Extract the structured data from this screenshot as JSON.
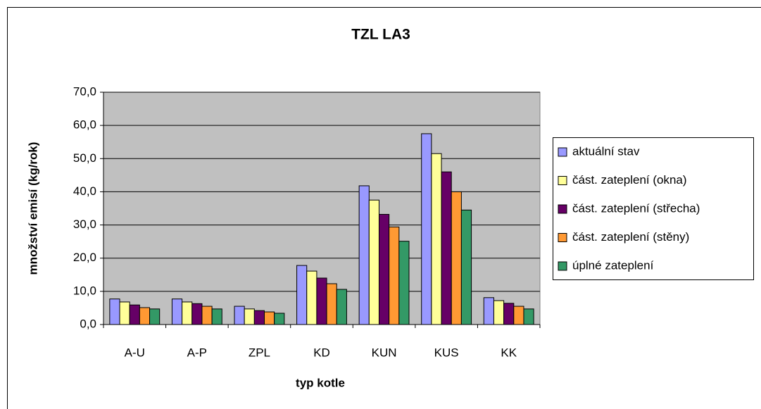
{
  "chart_data": {
    "type": "bar",
    "title": "TZL LA3",
    "xlabel": "typ kotle",
    "ylabel": "množství emisí (kg/rok)",
    "categories": [
      "A-U",
      "A-P",
      "ZPL",
      "KD",
      "KUN",
      "KUS",
      "KK"
    ],
    "series": [
      {
        "name": "aktuální stav",
        "color": "#9999ff",
        "values": [
          7.7,
          7.7,
          5.5,
          17.8,
          41.8,
          57.5,
          8.1
        ]
      },
      {
        "name": "část. zateplení (okna)",
        "color": "#ffff99",
        "values": [
          6.8,
          6.8,
          4.7,
          16.1,
          37.5,
          51.5,
          7.2
        ]
      },
      {
        "name": "část. zateplení (střecha)",
        "color": "#660066",
        "values": [
          5.9,
          6.3,
          4.2,
          14.0,
          33.2,
          46.0,
          6.4
        ]
      },
      {
        "name": "část. zateplení (stěny)",
        "color": "#ff9933",
        "values": [
          5.1,
          5.5,
          3.8,
          12.3,
          29.4,
          40.0,
          5.5
        ]
      },
      {
        "name": "úplné zateplení",
        "color": "#339966",
        "values": [
          4.7,
          4.7,
          3.4,
          10.6,
          25.1,
          34.5,
          4.7
        ]
      }
    ],
    "ylim": [
      0,
      70
    ],
    "yticks": [
      {
        "value": 0,
        "label": "0,0"
      },
      {
        "value": 10,
        "label": "10,0"
      },
      {
        "value": 20,
        "label": "20,0"
      },
      {
        "value": 30,
        "label": "30,0"
      },
      {
        "value": 40,
        "label": "40,0"
      },
      {
        "value": 50,
        "label": "50,0"
      },
      {
        "value": 60,
        "label": "60,0"
      },
      {
        "value": 70,
        "label": "70,0"
      }
    ],
    "grid": true,
    "legend": "right",
    "plot_background": "#c0c0c0"
  }
}
